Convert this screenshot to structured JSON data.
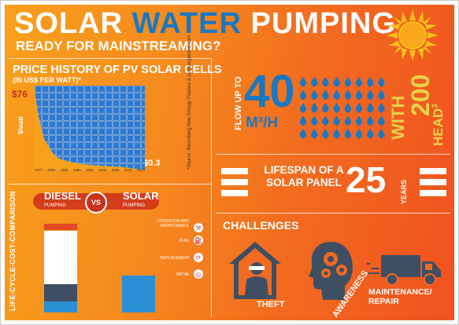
{
  "header": {
    "title_part1": "SOLAR",
    "title_part2": "WATER",
    "title_part3": "PUMPING",
    "subtitle": "READY FOR MAINSTREAMING?",
    "sun_icon": "sun-icon"
  },
  "price_history": {
    "title": "PRICE HISTORY OF PV SOLAR CELLS",
    "unit": "(IN US$ PER WATT)*",
    "start_label": "$76",
    "end_label": "$0.3",
    "y_axis_label": "$/watt",
    "source": "*Source: Bloomberg New Energy Finance & pv.energytrend.com",
    "x_tick_labels": [
      "1977",
      "1980",
      "1985",
      "1990",
      "1995",
      "2000",
      "2005",
      "2010",
      "2013"
    ]
  },
  "chart_data": {
    "type": "area",
    "title": "PRICE HISTORY OF PV SOLAR CELLS",
    "ylabel": "$/watt",
    "x": [
      1977,
      1978,
      1980,
      1983,
      1985,
      1990,
      1995,
      2000,
      2005,
      2008,
      2010,
      2013
    ],
    "y": [
      76,
      55,
      30,
      16,
      11,
      7,
      5,
      4,
      3.2,
      2.2,
      1.2,
      0.3
    ],
    "ylim": [
      0,
      80
    ],
    "annotations": [
      "$76",
      "$0.3"
    ]
  },
  "comparison": {
    "side_label": "LIFE-CYCLE-COST-COMPARISON",
    "left_title": "DIESEL",
    "left_sub": "PUMPING",
    "vs": "VS",
    "right_title": "SOLAR",
    "right_sub": "PUMPING",
    "legend": [
      {
        "label": "OPERATION AND MAINTENANCE",
        "icon": "wrench-icon"
      },
      {
        "label": "FUEL",
        "icon": "fuel-icon"
      },
      {
        "label": "REPLACEMENT",
        "icon": "replace-icon"
      },
      {
        "label": "INITIAL",
        "icon": "coins-icon"
      }
    ],
    "colors": {
      "om": "#e04a24",
      "fuel": "#ffffff",
      "replacement": "#3e4f63",
      "initial": "#2b8fd6"
    }
  },
  "flow": {
    "side_label": "FLOW UP TO",
    "value": "40",
    "unit": "M³/H",
    "with_label": "WITH",
    "head_value": "200",
    "head_unit": "HEAD",
    "head_sup": "3",
    "drop_icon": "water-drop-icon"
  },
  "lifespan": {
    "label": "LIFESPAN OF A SOLAR PANEL",
    "value": "25",
    "unit": "YEARS"
  },
  "challenges": {
    "title": "CHALLENGES",
    "items": [
      {
        "label": "THEFT",
        "icon": "thief-house-icon"
      },
      {
        "label": "AWARENESS",
        "icon": "head-gears-icon"
      },
      {
        "label": "MAINTENANCE/ REPAIR",
        "icon": "truck-icon"
      }
    ]
  },
  "colors": {
    "accent_blue": "#1a78c2",
    "accent_yellow": "#e8d24a",
    "accent_red": "#c8321e"
  }
}
